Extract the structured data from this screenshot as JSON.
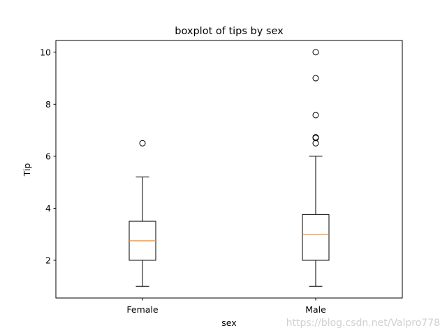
{
  "chart_data": {
    "type": "boxplot",
    "title": "boxplot of tips by sex",
    "xlabel": "sex",
    "ylabel": "Tip",
    "ylim": [
      0.55,
      10.45
    ],
    "yticks": [
      2,
      4,
      6,
      8,
      10
    ],
    "grid": false,
    "categories": [
      "Female",
      "Male"
    ],
    "boxes": [
      {
        "category": "Female",
        "whisker_low": 1.0,
        "q1": 2.0,
        "median": 2.75,
        "q3": 3.5,
        "whisker_high": 5.2,
        "outliers": [
          6.5
        ]
      },
      {
        "category": "Male",
        "whisker_low": 1.0,
        "q1": 2.0,
        "median": 3.0,
        "q3": 3.76,
        "whisker_high": 6.0,
        "outliers": [
          6.5,
          6.7,
          6.73,
          7.58,
          9.0,
          10.0
        ]
      }
    ],
    "colors": {
      "box": "#000000",
      "median": "#ff7f0e",
      "outlier": "#000000"
    }
  },
  "watermark": "https://blog.csdn.net/Valpro778"
}
